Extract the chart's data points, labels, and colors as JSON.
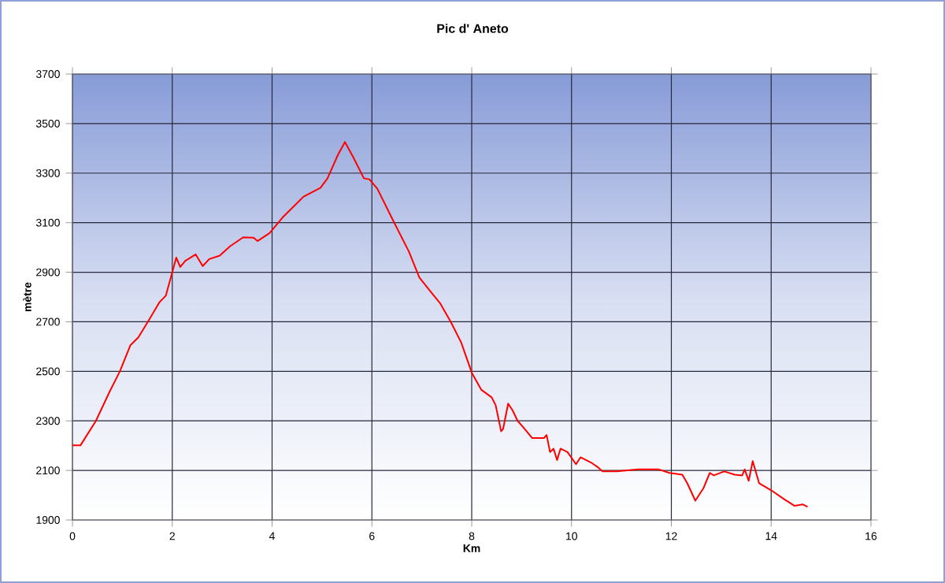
{
  "chart_data": {
    "type": "line",
    "title": "Pic d' Aneto",
    "xlabel": "Km",
    "ylabel": "mètre",
    "xlim": [
      0,
      16
    ],
    "xticks": [
      0,
      2,
      4,
      6,
      8,
      10,
      12,
      14,
      16
    ],
    "ylim": [
      1900,
      3700
    ],
    "yticks": [
      1900,
      2100,
      2300,
      2500,
      2700,
      2900,
      3100,
      3300,
      3500,
      3700
    ],
    "grid": true,
    "marker": "none",
    "line_style": "solid",
    "series": [
      {
        "color": "#ff0000",
        "x": [
          0,
          0.16,
          0.47,
          0.74,
          0.95,
          1.16,
          1.32,
          1.53,
          1.74,
          1.87,
          2.0,
          2.08,
          2.16,
          2.26,
          2.47,
          2.61,
          2.74,
          2.95,
          3.16,
          3.42,
          3.63,
          3.71,
          3.95,
          4.21,
          4.63,
          4.97,
          5.11,
          5.32,
          5.46,
          5.63,
          5.84,
          5.95,
          6.11,
          6.42,
          6.74,
          6.95,
          7.16,
          7.37,
          7.58,
          7.79,
          8.0,
          8.19,
          8.4,
          8.48,
          8.59,
          8.63,
          8.73,
          8.82,
          8.92,
          9.03,
          9.21,
          9.45,
          9.5,
          9.57,
          9.64,
          9.71,
          9.78,
          9.92,
          10.09,
          10.18,
          10.39,
          10.54,
          10.62,
          10.91,
          11.33,
          11.75,
          11.96,
          12.22,
          12.32,
          12.48,
          12.64,
          12.77,
          12.85,
          13.06,
          13.27,
          13.42,
          13.47,
          13.55,
          13.63,
          13.76,
          14.0,
          14.26,
          14.47,
          14.63,
          14.73
        ],
        "values": [
          2201,
          2201,
          2300,
          2416,
          2500,
          2605,
          2637,
          2706,
          2778,
          2805,
          2900,
          2959,
          2921,
          2946,
          2972,
          2925,
          2953,
          2967,
          3005,
          3041,
          3039,
          3026,
          3058,
          3121,
          3205,
          3241,
          3279,
          3374,
          3426,
          3363,
          3279,
          3275,
          3237,
          3111,
          2984,
          2879,
          2826,
          2774,
          2700,
          2616,
          2495,
          2426,
          2395,
          2363,
          2258,
          2268,
          2370,
          2342,
          2300,
          2275,
          2231,
          2231,
          2243,
          2174,
          2188,
          2142,
          2188,
          2174,
          2125,
          2153,
          2132,
          2111,
          2096,
          2096,
          2104,
          2104,
          2090,
          2083,
          2048,
          1978,
          2027,
          2090,
          2080,
          2096,
          2083,
          2080,
          2104,
          2058,
          2138,
          2048,
          2020,
          1984,
          1957,
          1963,
          1953
        ]
      }
    ]
  }
}
